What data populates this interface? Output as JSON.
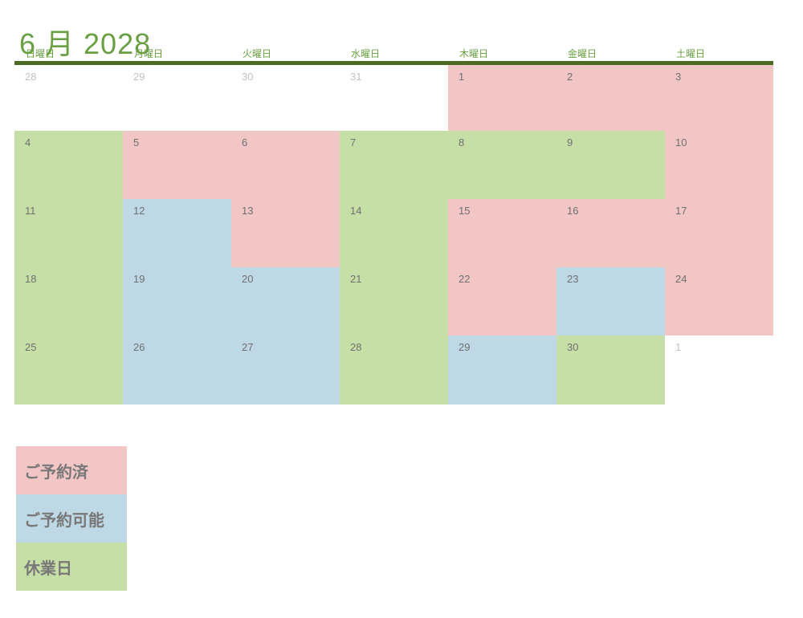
{
  "title": "6 月 2028",
  "weekdays": [
    "日曜日",
    "月曜日",
    "火曜日",
    "水曜日",
    "木曜日",
    "金曜日",
    "土曜日"
  ],
  "weeks": [
    [
      {
        "day": "28",
        "other_month": true,
        "status": "none"
      },
      {
        "day": "29",
        "other_month": true,
        "status": "none"
      },
      {
        "day": "30",
        "other_month": true,
        "status": "none"
      },
      {
        "day": "31",
        "other_month": true,
        "status": "none"
      },
      {
        "day": "1",
        "other_month": false,
        "status": "booked"
      },
      {
        "day": "2",
        "other_month": false,
        "status": "booked"
      },
      {
        "day": "3",
        "other_month": false,
        "status": "booked"
      }
    ],
    [
      {
        "day": "4",
        "other_month": false,
        "status": "closed"
      },
      {
        "day": "5",
        "other_month": false,
        "status": "booked"
      },
      {
        "day": "6",
        "other_month": false,
        "status": "booked"
      },
      {
        "day": "7",
        "other_month": false,
        "status": "closed"
      },
      {
        "day": "8",
        "other_month": false,
        "status": "closed"
      },
      {
        "day": "9",
        "other_month": false,
        "status": "closed"
      },
      {
        "day": "10",
        "other_month": false,
        "status": "booked"
      }
    ],
    [
      {
        "day": "11",
        "other_month": false,
        "status": "closed"
      },
      {
        "day": "12",
        "other_month": false,
        "status": "available"
      },
      {
        "day": "13",
        "other_month": false,
        "status": "booked"
      },
      {
        "day": "14",
        "other_month": false,
        "status": "closed"
      },
      {
        "day": "15",
        "other_month": false,
        "status": "booked"
      },
      {
        "day": "16",
        "other_month": false,
        "status": "booked"
      },
      {
        "day": "17",
        "other_month": false,
        "status": "booked"
      }
    ],
    [
      {
        "day": "18",
        "other_month": false,
        "status": "closed"
      },
      {
        "day": "19",
        "other_month": false,
        "status": "available"
      },
      {
        "day": "20",
        "other_month": false,
        "status": "available"
      },
      {
        "day": "21",
        "other_month": false,
        "status": "closed"
      },
      {
        "day": "22",
        "other_month": false,
        "status": "booked"
      },
      {
        "day": "23",
        "other_month": false,
        "status": "available"
      },
      {
        "day": "24",
        "other_month": false,
        "status": "booked"
      }
    ],
    [
      {
        "day": "25",
        "other_month": false,
        "status": "closed"
      },
      {
        "day": "26",
        "other_month": false,
        "status": "available"
      },
      {
        "day": "27",
        "other_month": false,
        "status": "available"
      },
      {
        "day": "28",
        "other_month": false,
        "status": "closed"
      },
      {
        "day": "29",
        "other_month": false,
        "status": "available"
      },
      {
        "day": "30",
        "other_month": false,
        "status": "closed"
      },
      {
        "day": "1",
        "other_month": true,
        "status": "none"
      }
    ]
  ],
  "legend": [
    {
      "label": "ご予約済",
      "status": "booked"
    },
    {
      "label": "ご予約可能",
      "status": "available"
    },
    {
      "label": "休業日",
      "status": "closed"
    }
  ],
  "colors": {
    "booked": "#F1C6C4",
    "available": "#BED8E6",
    "closed": "#C6DFA6",
    "none": "#FFFFFF",
    "title_green": "#6AA044",
    "weekday_green": "#69A043",
    "rule_green": "#4C6B21",
    "day_number": "#707070",
    "other_month_number": "#C2C2C2",
    "legend_text": "#787878"
  }
}
